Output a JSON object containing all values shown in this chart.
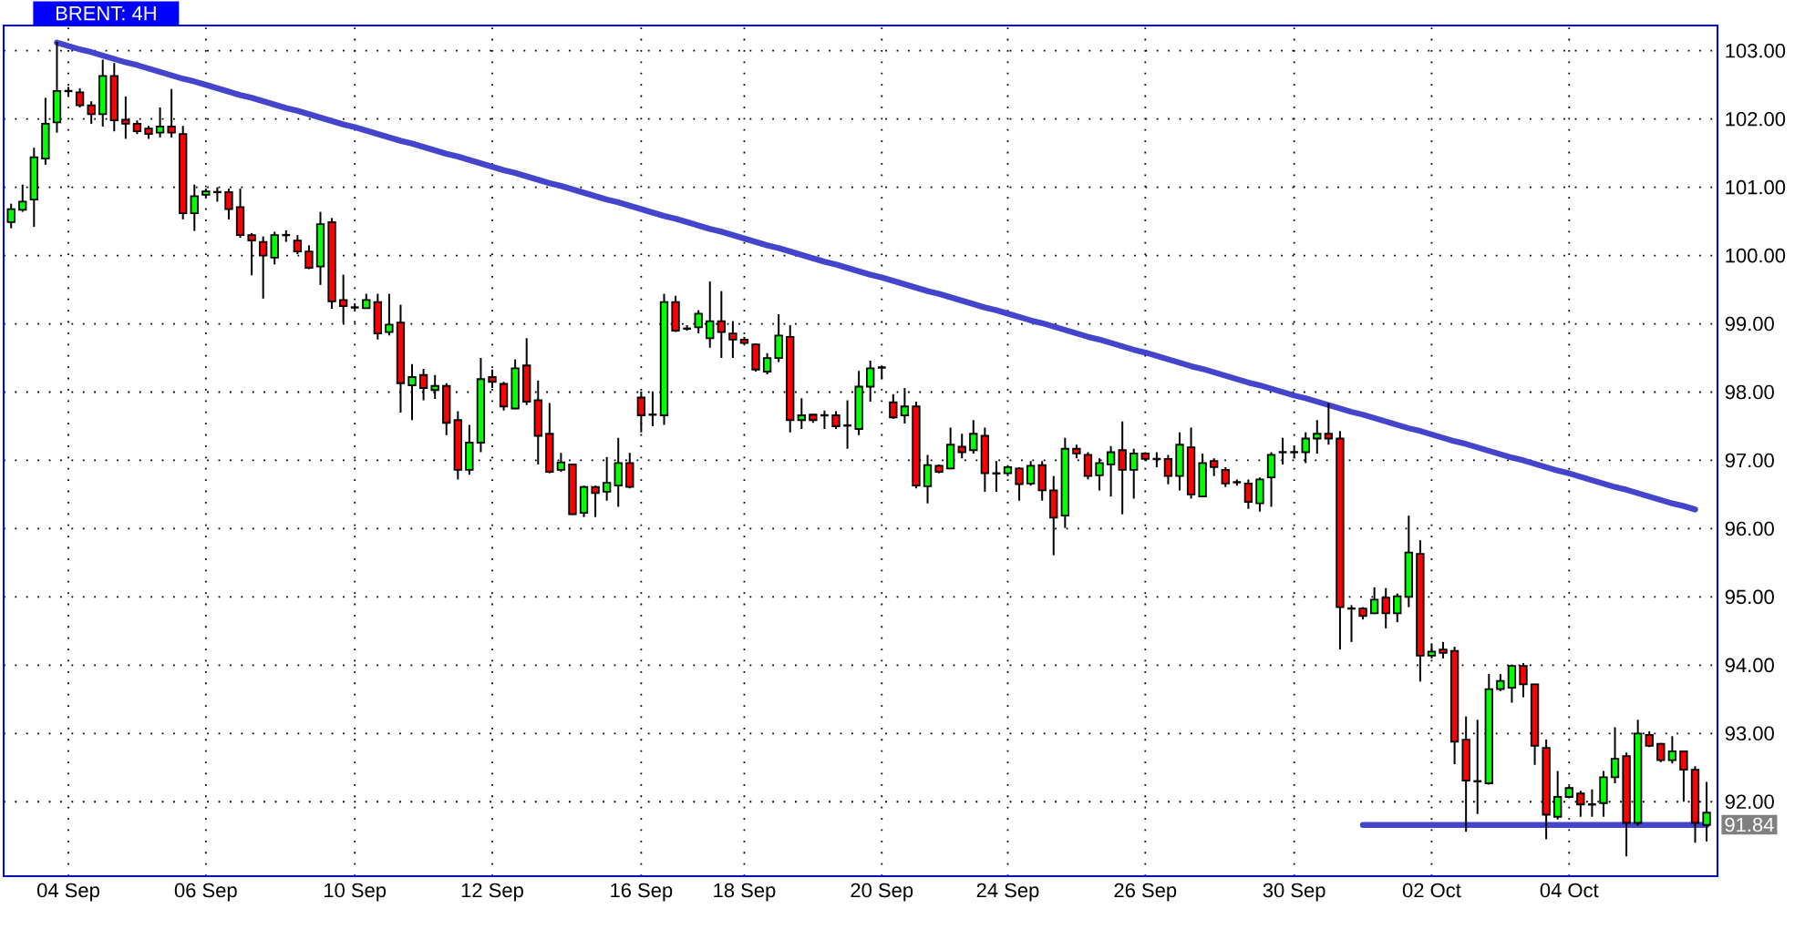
{
  "chart_data": {
    "type": "candlestick",
    "title": "BRENT: 4H",
    "categories": [
      null,
      null,
      null,
      null,
      null,
      "04 Sep",
      null,
      null,
      null,
      null,
      null,
      null,
      null,
      null,
      null,
      null,
      null,
      "06 Sep",
      null,
      null,
      null,
      null,
      null,
      null,
      null,
      null,
      null,
      null,
      null,
      null,
      "10 Sep",
      null,
      null,
      null,
      null,
      null,
      null,
      null,
      null,
      null,
      null,
      null,
      "12 Sep",
      null,
      null,
      null,
      null,
      null,
      null,
      null,
      null,
      null,
      null,
      null,
      null,
      "16 Sep",
      null,
      null,
      null,
      null,
      null,
      null,
      null,
      null,
      "18 Sep",
      null,
      null,
      null,
      null,
      null,
      null,
      null,
      null,
      null,
      null,
      null,
      "20 Sep",
      null,
      null,
      null,
      null,
      null,
      null,
      null,
      null,
      null,
      null,
      "24 Sep",
      null,
      null,
      null,
      null,
      null,
      null,
      null,
      null,
      null,
      null,
      null,
      "26 Sep",
      null,
      null,
      null,
      null,
      null,
      null,
      null,
      null,
      null,
      null,
      null,
      null,
      "30 Sep",
      null,
      null,
      null,
      null,
      null,
      null,
      null,
      null,
      null,
      null,
      null,
      "02 Oct",
      null,
      null,
      null,
      null,
      null,
      null,
      null,
      null,
      null,
      null,
      null,
      "04 Oct",
      null,
      null,
      null,
      null,
      null,
      null,
      null,
      null,
      null,
      null,
      null,
      null
    ],
    "series": [
      {
        "type": "line",
        "color": "#4444cc",
        "values": [
          null,
          null,
          null,
          null,
          103.12,
          103.07,
          103.02,
          102.98,
          102.93,
          102.88,
          102.83,
          102.79,
          102.74,
          102.69,
          102.64,
          102.59,
          102.55,
          102.5,
          102.45,
          102.4,
          102.35,
          102.31,
          102.26,
          102.21,
          102.16,
          102.12,
          102.07,
          102.02,
          101.97,
          101.92,
          101.88,
          101.83,
          101.78,
          101.73,
          101.68,
          101.64,
          101.59,
          101.54,
          101.49,
          101.45,
          101.4,
          101.35,
          101.3,
          101.25,
          101.21,
          101.16,
          101.11,
          101.06,
          101.02,
          100.97,
          100.92,
          100.87,
          100.82,
          100.78,
          100.73,
          100.68,
          100.63,
          100.58,
          100.54,
          100.49,
          100.44,
          100.39,
          100.35,
          100.3,
          100.25,
          100.2,
          100.15,
          100.11,
          100.06,
          100.01,
          99.96,
          99.91,
          99.87,
          99.82,
          99.77,
          99.72,
          99.68,
          99.63,
          99.58,
          99.53,
          99.48,
          99.44,
          99.39,
          99.34,
          99.29,
          99.24,
          99.2,
          99.15,
          99.1,
          99.05,
          99.01,
          98.96,
          98.91,
          98.86,
          98.81,
          98.77,
          98.72,
          98.67,
          98.62,
          98.58,
          98.53,
          98.48,
          98.43,
          98.38,
          98.34,
          98.29,
          98.24,
          98.19,
          98.14,
          98.1,
          98.05,
          98.0,
          97.95,
          97.91,
          97.86,
          97.81,
          97.76,
          97.71,
          97.67,
          97.62,
          97.57,
          97.52,
          97.47,
          97.43,
          97.38,
          97.33,
          97.28,
          97.24,
          97.19,
          97.14,
          97.09,
          97.04,
          97.0,
          96.95,
          96.9,
          96.85,
          96.81,
          96.76,
          96.71,
          96.66,
          96.61,
          96.57,
          96.52,
          96.47,
          96.42,
          96.37,
          96.33,
          96.28,
          null
        ]
      },
      {
        "type": "line",
        "color": "#4444cc",
        "values": [
          null,
          null,
          null,
          null,
          null,
          null,
          null,
          null,
          null,
          null,
          null,
          null,
          null,
          null,
          null,
          null,
          null,
          null,
          null,
          null,
          null,
          null,
          null,
          null,
          null,
          null,
          null,
          null,
          null,
          null,
          null,
          null,
          null,
          null,
          null,
          null,
          null,
          null,
          null,
          null,
          null,
          null,
          null,
          null,
          null,
          null,
          null,
          null,
          null,
          null,
          null,
          null,
          null,
          null,
          null,
          null,
          null,
          null,
          null,
          null,
          null,
          null,
          null,
          null,
          null,
          null,
          null,
          null,
          null,
          null,
          null,
          null,
          null,
          null,
          null,
          null,
          null,
          null,
          null,
          null,
          null,
          null,
          null,
          null,
          null,
          null,
          null,
          null,
          null,
          null,
          null,
          null,
          null,
          null,
          null,
          null,
          null,
          null,
          null,
          null,
          null,
          null,
          null,
          null,
          null,
          null,
          null,
          null,
          null,
          null,
          null,
          null,
          null,
          null,
          null,
          null,
          null,
          null,
          91.66,
          91.66,
          91.66,
          91.66,
          91.66,
          91.66,
          91.66,
          91.66,
          91.66,
          91.66,
          91.66,
          91.66,
          91.66,
          91.66,
          91.66,
          91.66,
          91.66,
          91.66,
          91.66,
          91.66,
          91.66,
          91.66,
          91.66,
          91.66,
          91.66,
          91.66,
          91.66,
          91.66,
          91.66,
          91.66,
          91.66
        ]
      },
      {
        "ohlc": [
          [
            100.49,
            100.76,
            100.4,
            100.68
          ],
          [
            100.67,
            101.04,
            100.64,
            100.79
          ],
          [
            100.82,
            101.58,
            100.42,
            101.44
          ],
          [
            101.42,
            102.31,
            101.33,
            101.93
          ],
          [
            101.95,
            103.13,
            101.8,
            102.41
          ],
          [
            102.41,
            102.47,
            102.33,
            102.41
          ],
          [
            102.39,
            102.45,
            102.17,
            102.2
          ],
          [
            102.2,
            102.26,
            101.93,
            102.07
          ],
          [
            102.07,
            102.87,
            101.89,
            102.63
          ],
          [
            102.63,
            102.82,
            101.82,
            101.98
          ],
          [
            101.99,
            102.33,
            101.71,
            101.93
          ],
          [
            101.93,
            101.98,
            101.78,
            101.82
          ],
          [
            101.86,
            101.9,
            101.71,
            101.78
          ],
          [
            101.8,
            102.17,
            101.73,
            101.89
          ],
          [
            101.89,
            102.44,
            101.73,
            101.8
          ],
          [
            101.78,
            101.9,
            100.53,
            100.62
          ],
          [
            100.62,
            101.04,
            100.36,
            100.87
          ],
          [
            100.89,
            100.98,
            100.85,
            100.94
          ],
          [
            100.93,
            101.0,
            100.79,
            100.93
          ],
          [
            100.93,
            100.98,
            100.53,
            100.68
          ],
          [
            100.71,
            100.98,
            100.26,
            100.3
          ],
          [
            100.3,
            100.33,
            99.71,
            100.22
          ],
          [
            100.2,
            100.28,
            99.37,
            100.0
          ],
          [
            99.97,
            100.35,
            99.87,
            100.3
          ],
          [
            100.3,
            100.37,
            100.2,
            100.3
          ],
          [
            100.22,
            100.3,
            100.02,
            100.06
          ],
          [
            100.06,
            100.15,
            99.8,
            99.82
          ],
          [
            99.84,
            100.64,
            99.57,
            100.46
          ],
          [
            100.49,
            100.55,
            99.22,
            99.33
          ],
          [
            99.35,
            99.72,
            99.01,
            99.26
          ],
          [
            99.24,
            99.3,
            99.2,
            99.24
          ],
          [
            99.23,
            99.44,
            99.22,
            99.35
          ],
          [
            99.32,
            99.44,
            98.77,
            98.86
          ],
          [
            98.88,
            99.44,
            98.83,
            98.99
          ],
          [
            99.02,
            99.28,
            97.7,
            98.13
          ],
          [
            98.1,
            98.41,
            97.59,
            98.22
          ],
          [
            98.25,
            98.34,
            97.88,
            98.06
          ],
          [
            98.03,
            98.25,
            97.9,
            98.09
          ],
          [
            98.09,
            98.13,
            97.37,
            97.55
          ],
          [
            97.59,
            97.72,
            96.72,
            96.86
          ],
          [
            96.86,
            97.52,
            96.79,
            97.26
          ],
          [
            97.26,
            98.5,
            97.12,
            98.19
          ],
          [
            98.22,
            98.33,
            98.06,
            98.15
          ],
          [
            98.12,
            98.15,
            97.73,
            97.79
          ],
          [
            97.76,
            98.48,
            97.75,
            98.35
          ],
          [
            98.39,
            98.79,
            97.81,
            97.86
          ],
          [
            97.88,
            98.17,
            96.94,
            97.36
          ],
          [
            97.39,
            97.84,
            96.81,
            96.83
          ],
          [
            96.86,
            97.11,
            96.83,
            96.97
          ],
          [
            96.94,
            96.95,
            96.2,
            96.21
          ],
          [
            96.23,
            96.63,
            96.17,
            96.61
          ],
          [
            96.61,
            96.63,
            96.17,
            96.52
          ],
          [
            96.54,
            97.05,
            96.41,
            96.67
          ],
          [
            96.63,
            97.33,
            96.32,
            96.96
          ],
          [
            96.96,
            97.11,
            96.59,
            96.61
          ],
          [
            97.92,
            98.01,
            97.41,
            97.66
          ],
          [
            97.67,
            98.01,
            97.5,
            97.67
          ],
          [
            97.66,
            99.44,
            97.52,
            99.32
          ],
          [
            99.32,
            99.41,
            98.88,
            98.9
          ],
          [
            98.93,
            98.98,
            98.9,
            98.93
          ],
          [
            98.95,
            99.2,
            98.86,
            99.15
          ],
          [
            98.79,
            99.62,
            98.65,
            99.04
          ],
          [
            99.04,
            99.48,
            98.5,
            98.88
          ],
          [
            98.86,
            99.04,
            98.5,
            98.77
          ],
          [
            98.77,
            98.81,
            98.7,
            98.72
          ],
          [
            98.7,
            98.71,
            98.3,
            98.33
          ],
          [
            98.3,
            98.57,
            98.26,
            98.5
          ],
          [
            98.5,
            99.14,
            98.44,
            98.83
          ],
          [
            98.81,
            98.98,
            97.41,
            97.59
          ],
          [
            97.59,
            97.91,
            97.46,
            97.66
          ],
          [
            97.67,
            97.68,
            97.55,
            97.59
          ],
          [
            97.66,
            97.73,
            97.46,
            97.66
          ],
          [
            97.66,
            97.72,
            97.46,
            97.5
          ],
          [
            97.51,
            97.88,
            97.17,
            97.51
          ],
          [
            97.46,
            98.31,
            97.37,
            98.08
          ],
          [
            98.08,
            98.46,
            97.86,
            98.35
          ],
          [
            98.36,
            98.39,
            98.19,
            98.36
          ],
          [
            97.85,
            97.97,
            97.61,
            97.63
          ],
          [
            97.66,
            98.06,
            97.54,
            97.79
          ],
          [
            97.79,
            97.86,
            96.59,
            96.63
          ],
          [
            96.62,
            97.08,
            96.37,
            96.93
          ],
          [
            96.92,
            96.94,
            96.81,
            96.83
          ],
          [
            96.88,
            97.48,
            96.87,
            97.23
          ],
          [
            97.2,
            97.39,
            97.03,
            97.12
          ],
          [
            97.15,
            97.59,
            97.1,
            97.39
          ],
          [
            97.36,
            97.48,
            96.54,
            96.81
          ],
          [
            96.81,
            96.99,
            96.54,
            96.81
          ],
          [
            96.81,
            96.93,
            96.77,
            96.9
          ],
          [
            96.88,
            96.9,
            96.41,
            96.65
          ],
          [
            96.66,
            96.99,
            96.63,
            96.92
          ],
          [
            96.93,
            96.99,
            96.41,
            96.56
          ],
          [
            96.56,
            96.77,
            95.61,
            96.16
          ],
          [
            96.19,
            97.33,
            96.01,
            97.17
          ],
          [
            97.17,
            97.23,
            97.03,
            97.1
          ],
          [
            97.08,
            97.12,
            96.72,
            96.77
          ],
          [
            96.78,
            97.03,
            96.56,
            96.96
          ],
          [
            96.94,
            97.21,
            96.47,
            97.12
          ],
          [
            97.15,
            97.57,
            96.21,
            96.86
          ],
          [
            96.86,
            97.17,
            96.44,
            97.1
          ],
          [
            97.1,
            97.12,
            96.99,
            97.02
          ],
          [
            97.02,
            97.12,
            96.9,
            97.02
          ],
          [
            97.02,
            97.08,
            96.65,
            96.77
          ],
          [
            96.77,
            97.41,
            96.56,
            97.23
          ],
          [
            97.19,
            97.48,
            96.44,
            96.5
          ],
          [
            96.47,
            97.1,
            96.46,
            96.96
          ],
          [
            96.99,
            97.03,
            96.77,
            96.9
          ],
          [
            96.86,
            96.9,
            96.61,
            96.66
          ],
          [
            96.68,
            96.72,
            96.63,
            96.68
          ],
          [
            96.66,
            96.72,
            96.29,
            96.39
          ],
          [
            96.37,
            96.75,
            96.25,
            96.72
          ],
          [
            96.75,
            97.12,
            96.32,
            97.08
          ],
          [
            97.12,
            97.33,
            96.94,
            97.12
          ],
          [
            97.12,
            97.21,
            97.03,
            97.12
          ],
          [
            97.12,
            97.41,
            96.96,
            97.32
          ],
          [
            97.32,
            97.59,
            97.1,
            97.39
          ],
          [
            97.39,
            97.84,
            97.23,
            97.32
          ],
          [
            97.32,
            97.43,
            94.23,
            94.85
          ],
          [
            94.83,
            94.88,
            94.34,
            94.83
          ],
          [
            94.83,
            94.85,
            94.67,
            94.72
          ],
          [
            94.76,
            95.14,
            94.75,
            94.96
          ],
          [
            94.99,
            95.13,
            94.54,
            94.76
          ],
          [
            94.76,
            95.05,
            94.63,
            95.01
          ],
          [
            95.0,
            96.19,
            94.85,
            95.65
          ],
          [
            95.63,
            95.83,
            93.76,
            94.14
          ],
          [
            94.14,
            94.32,
            94.1,
            94.2
          ],
          [
            94.23,
            94.34,
            94.1,
            94.18
          ],
          [
            94.21,
            94.27,
            92.55,
            92.88
          ],
          [
            92.91,
            93.25,
            91.56,
            92.31
          ],
          [
            92.3,
            93.2,
            91.82,
            92.3
          ],
          [
            92.27,
            93.87,
            92.25,
            93.65
          ],
          [
            93.65,
            93.87,
            93.62,
            93.77
          ],
          [
            93.67,
            94.01,
            93.45,
            93.99
          ],
          [
            93.99,
            94.03,
            93.53,
            93.72
          ],
          [
            93.72,
            93.73,
            92.54,
            92.82
          ],
          [
            92.79,
            92.91,
            91.45,
            91.81
          ],
          [
            91.78,
            92.45,
            91.74,
            92.07
          ],
          [
            92.07,
            92.23,
            92.05,
            92.2
          ],
          [
            92.12,
            92.16,
            91.78,
            91.96
          ],
          [
            91.96,
            92.18,
            91.78,
            91.96
          ],
          [
            91.98,
            92.45,
            91.78,
            92.36
          ],
          [
            92.36,
            93.09,
            92.27,
            92.63
          ],
          [
            92.67,
            92.72,
            91.2,
            91.69
          ],
          [
            91.69,
            93.2,
            91.65,
            93.0
          ],
          [
            92.98,
            93.03,
            92.8,
            92.82
          ],
          [
            92.85,
            92.86,
            92.58,
            92.61
          ],
          [
            92.61,
            92.96,
            92.56,
            92.74
          ],
          [
            92.74,
            92.75,
            92.0,
            92.47
          ],
          [
            92.47,
            92.52,
            91.4,
            91.69
          ],
          [
            91.66,
            92.29,
            91.42,
            91.84
          ]
        ],
        "colors": [
          "#00ff00",
          "#00ff00",
          "#00ff00",
          "#00ff00",
          "#00ff00",
          "#000000",
          "#ff0000",
          "#ff0000",
          "#00ff00",
          "#ff0000",
          "#ff0000",
          "#ff0000",
          "#ff0000",
          "#00ff00",
          "#ff0000",
          "#ff0000",
          "#00ff00",
          "#00ff00",
          "#000000",
          "#ff0000",
          "#ff0000",
          "#ff0000",
          "#ff0000",
          "#00ff00",
          "#000000",
          "#ff0000",
          "#ff0000",
          "#00ff00",
          "#ff0000",
          "#ff0000",
          "#000000",
          "#00ff00",
          "#ff0000",
          "#00ff00",
          "#ff0000",
          "#00ff00",
          "#ff0000",
          "#00ff00",
          "#ff0000",
          "#ff0000",
          "#00ff00",
          "#00ff00",
          "#ff0000",
          "#ff0000",
          "#00ff00",
          "#ff0000",
          "#ff0000",
          "#ff0000",
          "#00ff00",
          "#ff0000",
          "#00ff00",
          "#ff0000",
          "#00ff00",
          "#00ff00",
          "#ff0000",
          "#ff0000",
          "#000000",
          "#00ff00",
          "#ff0000",
          "#000000",
          "#00ff00",
          "#00ff00",
          "#ff0000",
          "#ff0000",
          "#ff0000",
          "#ff0000",
          "#00ff00",
          "#00ff00",
          "#ff0000",
          "#00ff00",
          "#ff0000",
          "#000000",
          "#ff0000",
          "#000000",
          "#00ff00",
          "#00ff00",
          "#000000",
          "#ff0000",
          "#00ff00",
          "#ff0000",
          "#00ff00",
          "#ff0000",
          "#00ff00",
          "#ff0000",
          "#00ff00",
          "#ff0000",
          "#000000",
          "#00ff00",
          "#ff0000",
          "#00ff00",
          "#ff0000",
          "#ff0000",
          "#00ff00",
          "#ff0000",
          "#ff0000",
          "#00ff00",
          "#00ff00",
          "#ff0000",
          "#00ff00",
          "#ff0000",
          "#000000",
          "#ff0000",
          "#00ff00",
          "#ff0000",
          "#00ff00",
          "#ff0000",
          "#ff0000",
          "#000000",
          "#ff0000",
          "#00ff00",
          "#00ff00",
          "#000000",
          "#000000",
          "#00ff00",
          "#00ff00",
          "#ff0000",
          "#ff0000",
          "#000000",
          "#ff0000",
          "#00ff00",
          "#ff0000",
          "#00ff00",
          "#00ff00",
          "#ff0000",
          "#00ff00",
          "#ff0000",
          "#ff0000",
          "#ff0000",
          "#000000",
          "#00ff00",
          "#00ff00",
          "#00ff00",
          "#ff0000",
          "#ff0000",
          "#ff0000",
          "#00ff00",
          "#00ff00",
          "#ff0000",
          "#000000",
          "#00ff00",
          "#00ff00",
          "#ff0000",
          "#00ff00",
          "#ff0000",
          "#ff0000",
          "#00ff00",
          "#ff0000",
          "#ff0000",
          "#00ff00"
        ]
      }
    ],
    "ylim": [
      90.91,
      103.37
    ],
    "yticks": [
      {
        "value": 92,
        "label": "92.00"
      },
      {
        "value": 93,
        "label": "93.00"
      },
      {
        "value": 94,
        "label": "94.00"
      },
      {
        "value": 95,
        "label": "95.00"
      },
      {
        "value": 96,
        "label": "96.00"
      },
      {
        "value": 97,
        "label": "97.00"
      },
      {
        "value": 98,
        "label": "98.00"
      },
      {
        "value": 99,
        "label": "99.00"
      },
      {
        "value": 100,
        "label": "100.00"
      },
      {
        "value": 101,
        "label": "101.00"
      },
      {
        "value": 102,
        "label": "102.00"
      },
      {
        "value": 103,
        "label": "103.00"
      }
    ],
    "grid": true,
    "annotations": [
      "91.84"
    ]
  }
}
